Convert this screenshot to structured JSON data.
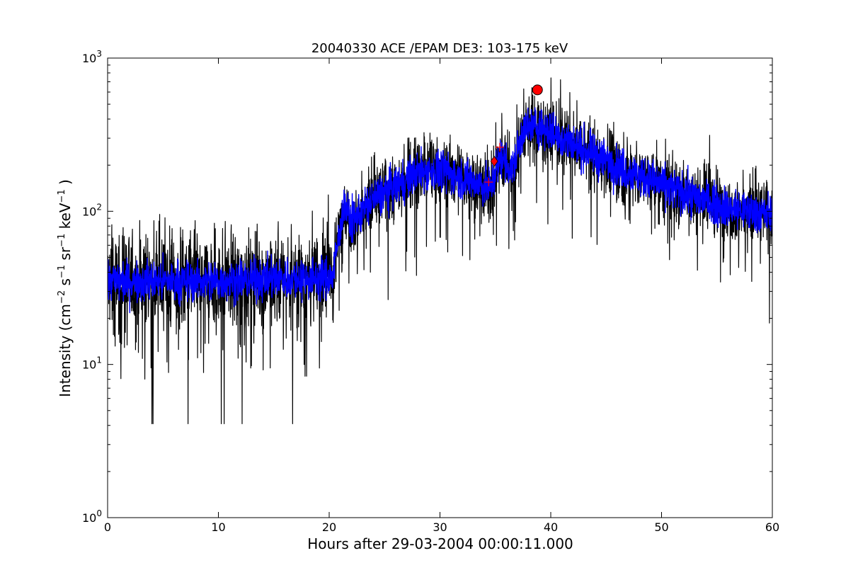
{
  "chart_data": {
    "type": "line",
    "title": "20040330 ACE /EPAM DE3: 103-175 keV",
    "xlabel": "Hours after 29-03-2004 00:00:11.000",
    "ylabel": {
      "prefix": "Intensity (cm",
      "sup1": "−2",
      "part2": " s",
      "sup2": "−1",
      "part3": " sr",
      "sup3": "−1",
      "part4": " keV",
      "sup4": "−1",
      "suffix": " )"
    },
    "xlim": [
      0,
      60
    ],
    "ylim": [
      1,
      1000
    ],
    "yscale": "log",
    "grid": false,
    "xticks": [
      {
        "value": 0,
        "label": "0"
      },
      {
        "value": 10,
        "label": "10"
      },
      {
        "value": 20,
        "label": "20"
      },
      {
        "value": 30,
        "label": "30"
      },
      {
        "value": 40,
        "label": "40"
      },
      {
        "value": 50,
        "label": "50"
      },
      {
        "value": 60,
        "label": "60"
      }
    ],
    "yticks": [
      {
        "value": 1,
        "base": "10",
        "exp": "0"
      },
      {
        "value": 10,
        "base": "10",
        "exp": "1"
      },
      {
        "value": 100,
        "base": "10",
        "exp": "2"
      },
      {
        "value": 1000,
        "base": "10",
        "exp": "3"
      }
    ],
    "trend_nodes": [
      {
        "x": 0,
        "y": 35
      },
      {
        "x": 5,
        "y": 35
      },
      {
        "x": 10,
        "y": 35
      },
      {
        "x": 15,
        "y": 36
      },
      {
        "x": 20.3,
        "y": 37
      },
      {
        "x": 21.3,
        "y": 110
      },
      {
        "x": 22,
        "y": 85
      },
      {
        "x": 24,
        "y": 120
      },
      {
        "x": 26,
        "y": 145
      },
      {
        "x": 28,
        "y": 180
      },
      {
        "x": 30,
        "y": 185
      },
      {
        "x": 32,
        "y": 165
      },
      {
        "x": 33.5,
        "y": 150
      },
      {
        "x": 34.5,
        "y": 140
      },
      {
        "x": 35.5,
        "y": 230
      },
      {
        "x": 36.5,
        "y": 180
      },
      {
        "x": 37.5,
        "y": 340
      },
      {
        "x": 39,
        "y": 360
      },
      {
        "x": 41,
        "y": 300
      },
      {
        "x": 44,
        "y": 230
      },
      {
        "x": 48,
        "y": 170
      },
      {
        "x": 52,
        "y": 130
      },
      {
        "x": 56,
        "y": 105
      },
      {
        "x": 60,
        "y": 95
      }
    ],
    "series": [
      {
        "role": "raw",
        "color": "#000000",
        "sample_step_hours": 0.02
      },
      {
        "role": "smoothed",
        "color": "#0000ff",
        "sample_step_hours": 0.02
      }
    ],
    "markers": [
      {
        "shape": "circle",
        "x": 38.8,
        "y": 620,
        "color": "#ff0000"
      },
      {
        "shape": "diamond",
        "x": 34.9,
        "y": 212,
        "color": "#ff0000"
      },
      {
        "shape": "plus",
        "x": 34.4,
        "y": 155,
        "color": "#ff0000"
      },
      {
        "shape": "plus",
        "x": 35.4,
        "y": 262,
        "color": "#ff0000"
      }
    ]
  }
}
